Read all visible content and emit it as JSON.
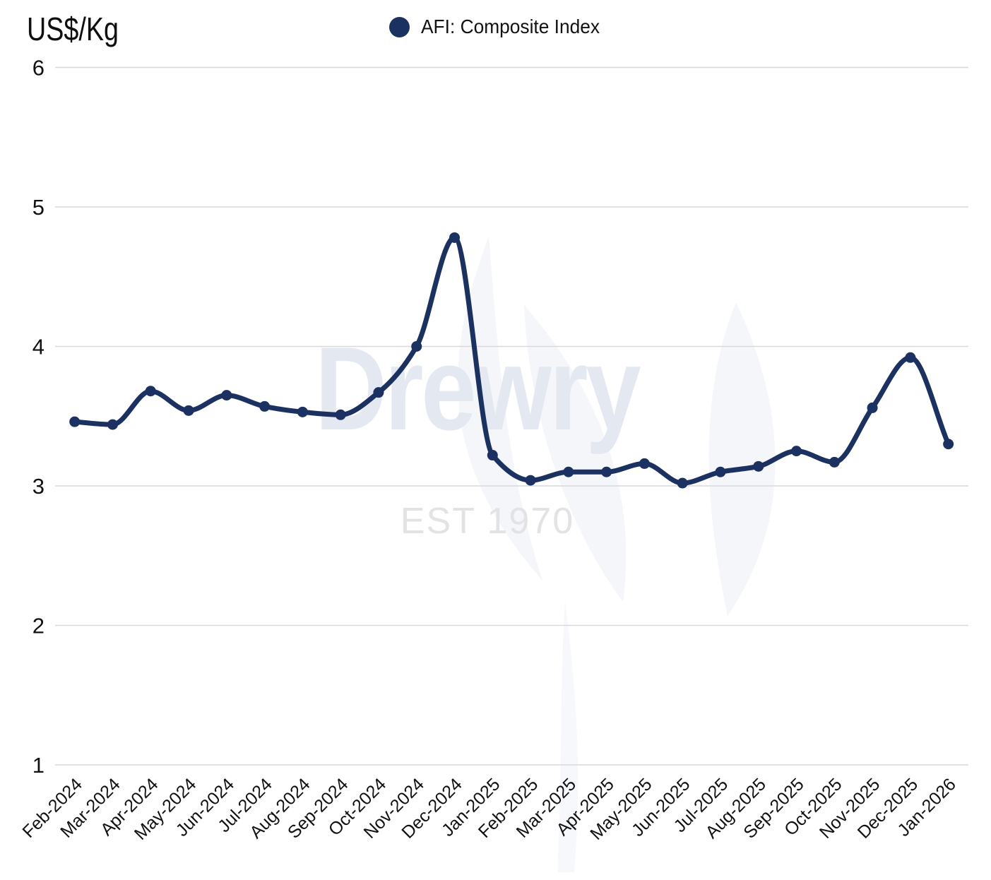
{
  "title": "US$/Kg",
  "legend": {
    "label": "AFI: Composite Index",
    "marker_color": "#1b3161"
  },
  "watermark": {
    "text": "Drewry",
    "subtext": "EST 1970"
  },
  "chart_data": {
    "type": "line",
    "title": "US$/Kg",
    "categories": [
      "Feb-2024",
      "Mar-2024",
      "Apr-2024",
      "May-2024",
      "Jun-2024",
      "Jul-2024",
      "Aug-2024",
      "Sep-2024",
      "Oct-2024",
      "Nov-2024",
      "Dec-2024",
      "Jan-2025",
      "Feb-2025",
      "Mar-2025",
      "Apr-2025",
      "May-2025",
      "Jun-2025",
      "Jul-2025",
      "Aug-2025",
      "Sep-2025",
      "Oct-2025",
      "Nov-2025",
      "Dec-2025",
      "Jan-2026"
    ],
    "series": [
      {
        "name": "AFI: Composite Index",
        "color": "#1b3161",
        "values": [
          3.46,
          3.44,
          3.68,
          3.54,
          3.65,
          3.57,
          3.53,
          3.51,
          3.67,
          4.0,
          4.78,
          3.22,
          3.04,
          3.1,
          3.1,
          3.16,
          3.02,
          3.1,
          3.14,
          3.25,
          3.17,
          3.56,
          3.92,
          3.3
        ]
      }
    ],
    "ylabel": "US$/Kg",
    "xlabel": "",
    "ylim": [
      1,
      6
    ],
    "yticks": [
      1,
      2,
      3,
      4,
      5,
      6
    ],
    "grid": "horizontal-only",
    "legend_position": "top-center",
    "line_style": "smooth",
    "markers": "circle"
  },
  "colors": {
    "line": "#1b3161",
    "grid": "#d9d9d9",
    "tick_text": "#111111",
    "watermark_word": "#e4e8f1",
    "watermark_sub": "#e3e3e5",
    "watermark_flame": "#f4f6fa"
  }
}
